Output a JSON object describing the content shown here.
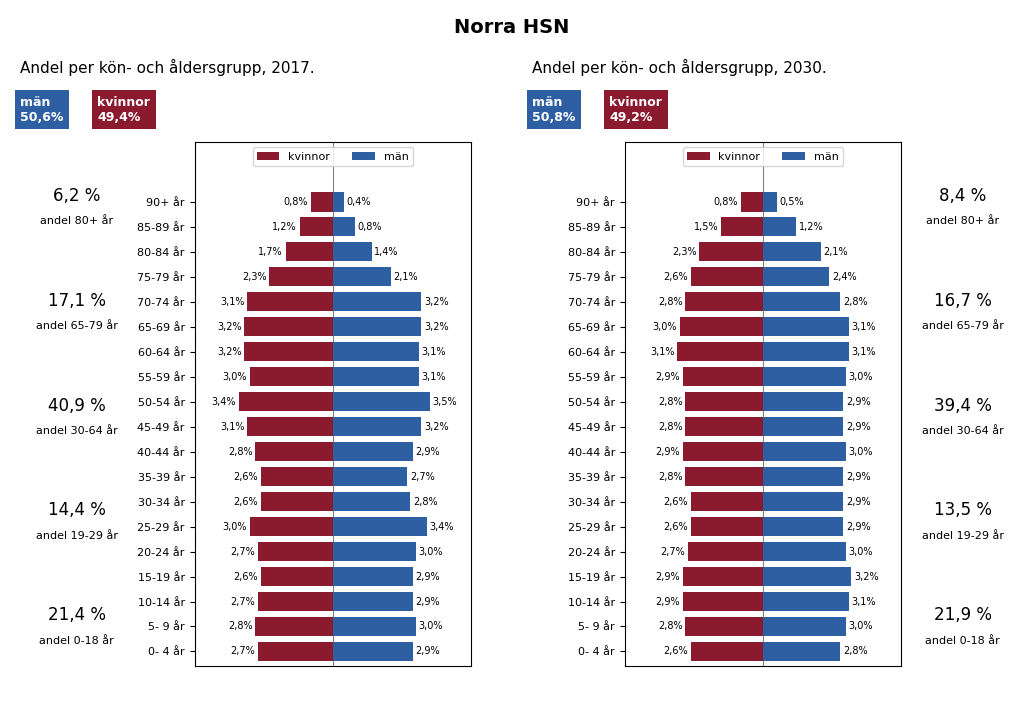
{
  "title": "Norra HSN",
  "chart_data": [
    {
      "type": "bar",
      "orientation": "horizontal",
      "title": "Andel per kön- och åldersgrupp, 2017.",
      "categories": [
        "90+ år",
        "85-89 år",
        "80-84 år",
        "75-79 år",
        "70-74 år",
        "65-69 år",
        "60-64 år",
        "55-59 år",
        "50-54 år",
        "45-49 år",
        "40-44 år",
        "35-39 år",
        "30-34 år",
        "25-29 år",
        "20-24 år",
        "15-19 år",
        "10-14 år",
        "5- 9 år",
        "0- 4 år"
      ],
      "series": [
        {
          "name": "kvinnor",
          "color": "#8B1A2E",
          "values": [
            0.8,
            1.2,
            1.7,
            2.3,
            3.1,
            3.2,
            3.2,
            3.0,
            3.4,
            3.1,
            2.8,
            2.6,
            2.6,
            3.0,
            2.7,
            2.6,
            2.7,
            2.8,
            2.7
          ],
          "value_labels": [
            "0,8%",
            "1,2%",
            "1,7%",
            "2,3%",
            "3,1%",
            "3,2%",
            "3,2%",
            "3,0%",
            "3,4%",
            "3,1%",
            "2,8%",
            "2,6%",
            "2,6%",
            "3,0%",
            "2,7%",
            "2,6%",
            "2,7%",
            "2,8%",
            "2,7%"
          ]
        },
        {
          "name": "män",
          "color": "#2E5FA3",
          "values": [
            0.4,
            0.8,
            1.4,
            2.1,
            3.2,
            3.2,
            3.1,
            3.1,
            3.5,
            3.2,
            2.9,
            2.7,
            2.8,
            3.4,
            3.0,
            2.9,
            2.9,
            3.0,
            2.9
          ],
          "value_labels": [
            "0,4%",
            "0,8%",
            "1,4%",
            "2,1%",
            "3,2%",
            "3,2%",
            "3,1%",
            "3,1%",
            "3,5%",
            "3,2%",
            "2,9%",
            "2,7%",
            "2,8%",
            "3,4%",
            "3,0%",
            "2,9%",
            "2,9%",
            "3,0%",
            "2,9%"
          ]
        }
      ],
      "xlim": [
        -5,
        5
      ],
      "tick_labels": "y",
      "data_labels": true,
      "legend": "upper center",
      "totals": [
        {
          "name": "män",
          "value": 50.6,
          "label": "50,6%",
          "color": "#2E5FA3"
        },
        {
          "name": "kvinnor",
          "value": 49.4,
          "label": "49,4%",
          "color": "#8B1A2E"
        }
      ],
      "group_shares": [
        {
          "name": "andel 80+ år",
          "value": 6.2,
          "label": "6,2 %"
        },
        {
          "name": "andel 65-79 år",
          "value": 17.1,
          "label": "17,1 %"
        },
        {
          "name": "andel 30-64 år",
          "value": 40.9,
          "label": "40,9 %"
        },
        {
          "name": "andel 19-29 år",
          "value": 14.4,
          "label": "14,4 %"
        },
        {
          "name": "andel 0-18 år",
          "value": 21.4,
          "label": "21,4 %"
        }
      ]
    },
    {
      "type": "bar",
      "orientation": "horizontal",
      "title": "Andel per kön- och åldersgrupp, 2030.",
      "categories": [
        "90+ år",
        "85-89 år",
        "80-84 år",
        "75-79 år",
        "70-74 år",
        "65-69 år",
        "60-64 år",
        "55-59 år",
        "50-54 år",
        "45-49 år",
        "40-44 år",
        "35-39 år",
        "30-34 år",
        "25-29 år",
        "20-24 år",
        "15-19 år",
        "10-14 år",
        "5- 9 år",
        "0- 4 år"
      ],
      "series": [
        {
          "name": "kvinnor",
          "color": "#8B1A2E",
          "values": [
            0.8,
            1.5,
            2.3,
            2.6,
            2.8,
            3.0,
            3.1,
            2.9,
            2.8,
            2.8,
            2.9,
            2.8,
            2.6,
            2.6,
            2.7,
            2.9,
            2.9,
            2.8,
            2.6
          ],
          "value_labels": [
            "0,8%",
            "1,5%",
            "2,3%",
            "2,6%",
            "2,8%",
            "3,0%",
            "3,1%",
            "2,9%",
            "2,8%",
            "2,8%",
            "2,9%",
            "2,8%",
            "2,6%",
            "2,6%",
            "2,7%",
            "2,9%",
            "2,9%",
            "2,8%",
            "2,6%"
          ]
        },
        {
          "name": "män",
          "color": "#2E5FA3",
          "values": [
            0.5,
            1.2,
            2.1,
            2.4,
            2.8,
            3.1,
            3.1,
            3.0,
            2.9,
            2.9,
            3.0,
            2.9,
            2.9,
            2.9,
            3.0,
            3.2,
            3.1,
            3.0,
            2.8
          ],
          "value_labels": [
            "0,5%",
            "1,2%",
            "2,1%",
            "2,4%",
            "2,8%",
            "3,1%",
            "3,1%",
            "3,0%",
            "2,9%",
            "2,9%",
            "3,0%",
            "2,9%",
            "2,9%",
            "2,9%",
            "3,0%",
            "3,2%",
            "3,1%",
            "3,0%",
            "2,8%"
          ]
        }
      ],
      "xlim": [
        -5,
        5
      ],
      "tick_labels": "y",
      "data_labels": true,
      "legend": "upper center",
      "totals": [
        {
          "name": "män",
          "value": 50.8,
          "label": "50,8%",
          "color": "#2E5FA3"
        },
        {
          "name": "kvinnor",
          "value": 49.2,
          "label": "49,2%",
          "color": "#8B1A2E"
        }
      ],
      "group_shares": [
        {
          "name": "andel 80+ år",
          "value": 8.4,
          "label": "8,4 %"
        },
        {
          "name": "andel 65-79 år",
          "value": 16.7,
          "label": "16,7 %"
        },
        {
          "name": "andel 30-64 år",
          "value": 39.4,
          "label": "39,4 %"
        },
        {
          "name": "andel 19-29 år",
          "value": 13.5,
          "label": "13,5 %"
        },
        {
          "name": "andel 0-18 år",
          "value": 21.9,
          "label": "21,9 %"
        }
      ]
    }
  ]
}
